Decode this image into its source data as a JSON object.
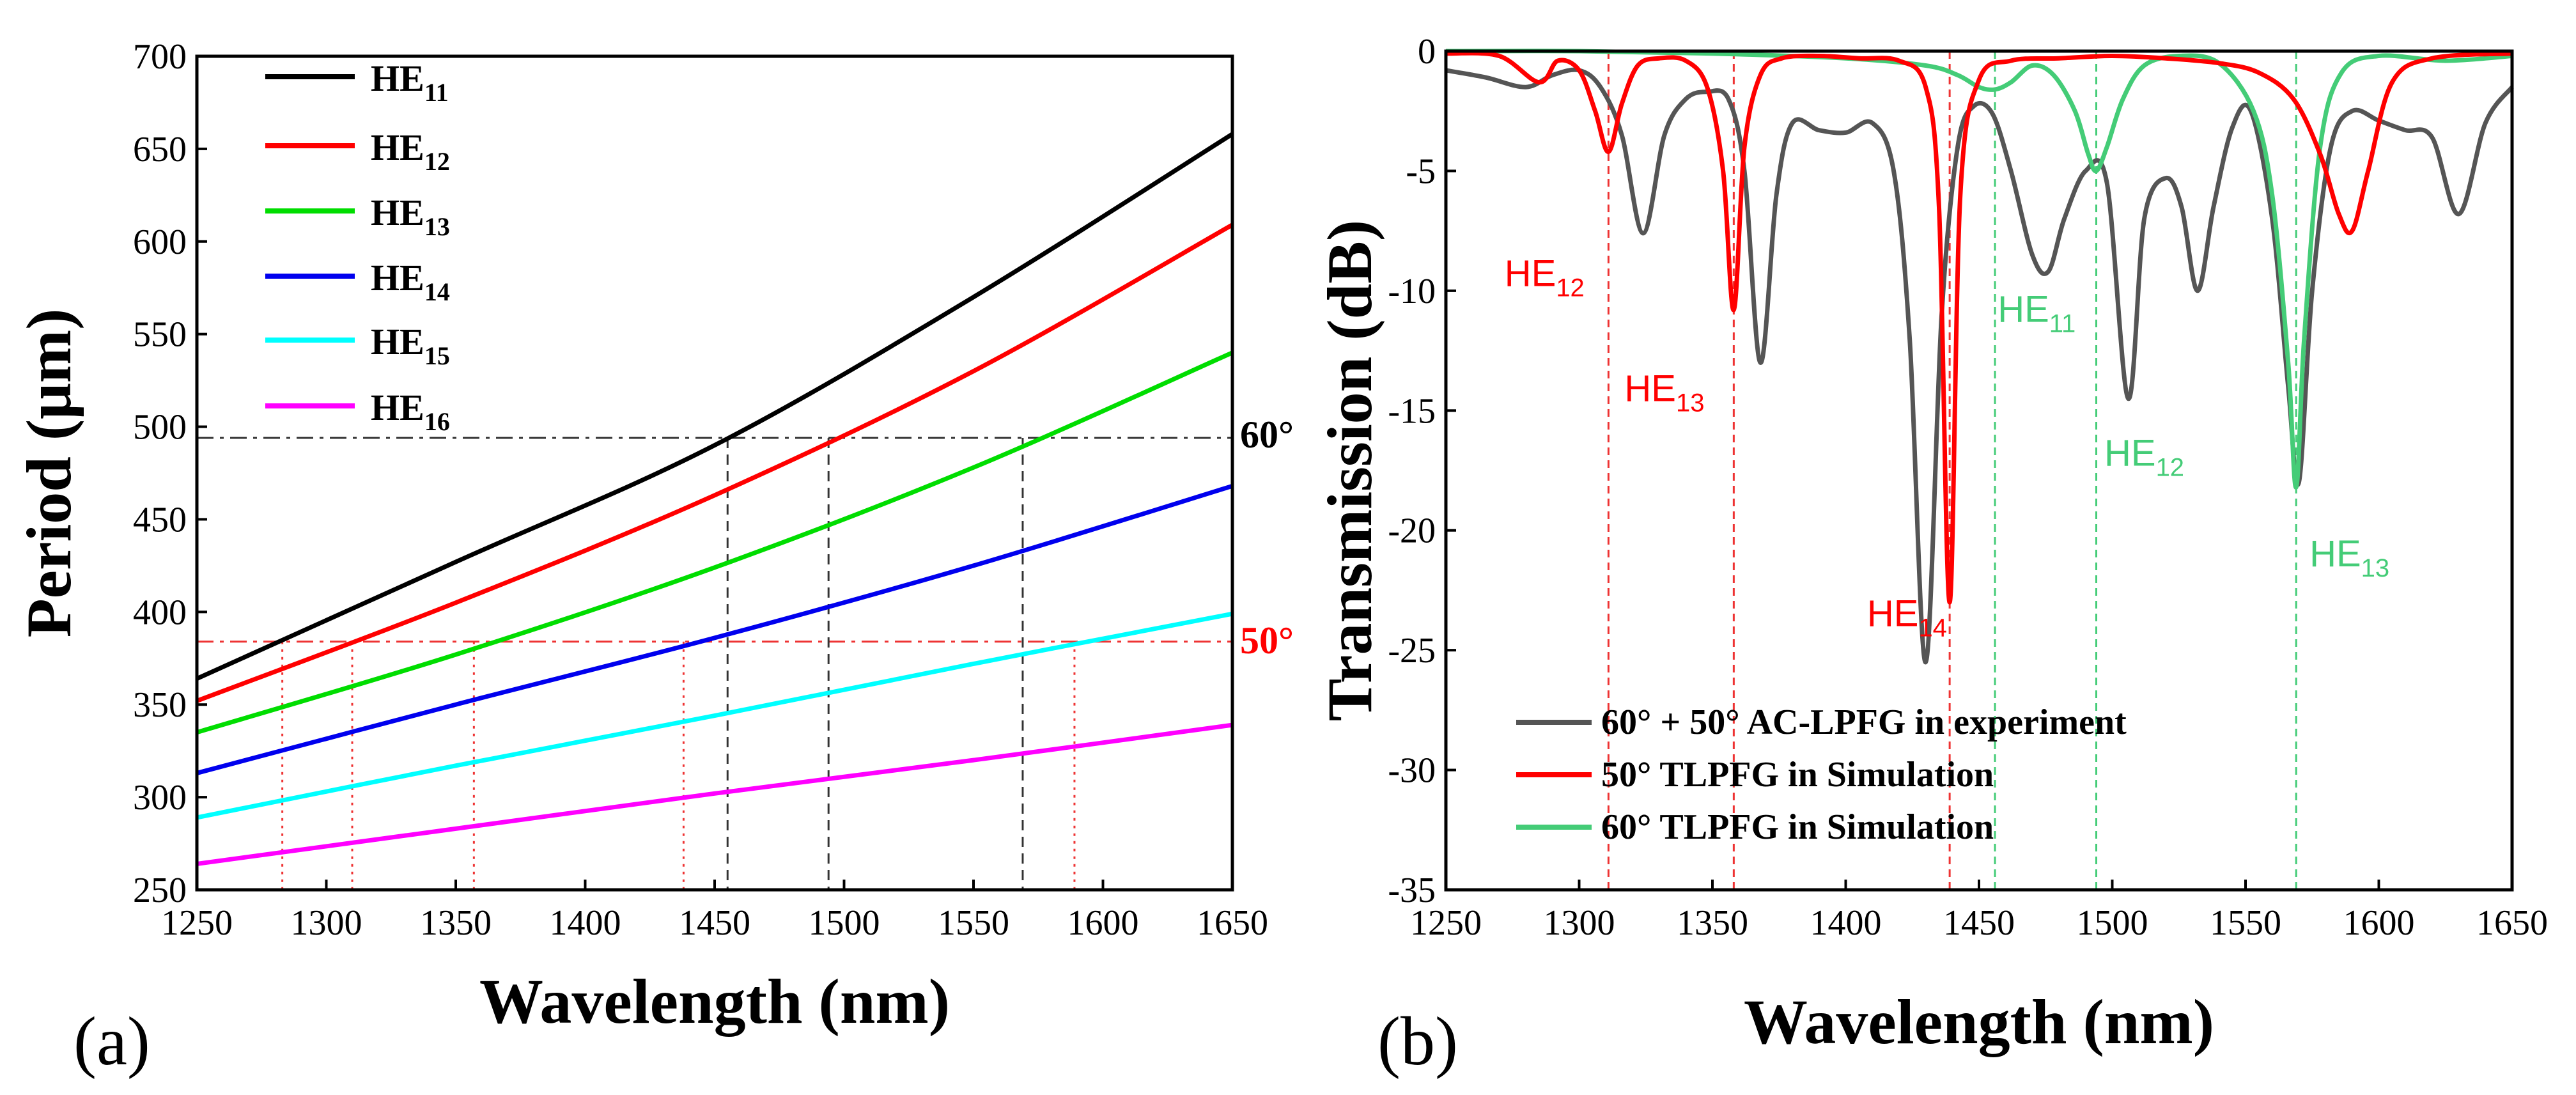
{
  "colors": {
    "he11": "#000000",
    "he12": "#ff0000",
    "he13": "#00dd00",
    "he14": "#0000ee",
    "he15": "#00ffff",
    "he16": "#ff00ff",
    "exp": "#555555",
    "sim50": "#ff0000",
    "sim60": "#44cc77",
    "black_guide": "#333333",
    "red_guide": "#ee3333"
  },
  "panels": {
    "a": {
      "label": "(a)"
    },
    "b": {
      "label": "(b)"
    }
  },
  "chart_data": [
    {
      "type": "line",
      "panel": "a",
      "xlabel": "Wavelength (nm)",
      "ylabel": "Period (μm)",
      "xlim": [
        1250,
        1650
      ],
      "ylim": [
        250,
        700
      ],
      "xticks": [
        "1250",
        "1300",
        "1350",
        "1400",
        "1450",
        "1500",
        "1550",
        "1600",
        "1650"
      ],
      "yticks": [
        "250",
        "300",
        "350",
        "400",
        "450",
        "500",
        "550",
        "600",
        "650",
        "700"
      ],
      "series": [
        {
          "name": "HE",
          "sub": "11",
          "color_key": "he11",
          "x": [
            1250,
            1350,
            1450,
            1550,
            1650
          ],
          "y": [
            364,
            427,
            490,
            570,
            658
          ]
        },
        {
          "name": "HE",
          "sub": "12",
          "color_key": "he12",
          "x": [
            1250,
            1350,
            1450,
            1550,
            1650
          ],
          "y": [
            352,
            405,
            463,
            530,
            609
          ]
        },
        {
          "name": "HE",
          "sub": "13",
          "color_key": "he13",
          "x": [
            1250,
            1350,
            1450,
            1550,
            1650
          ],
          "y": [
            335,
            377,
            424,
            478,
            540
          ]
        },
        {
          "name": "HE",
          "sub": "14",
          "color_key": "he14",
          "x": [
            1250,
            1350,
            1450,
            1550,
            1650
          ],
          "y": [
            313,
            350,
            386,
            425,
            468
          ]
        },
        {
          "name": "HE",
          "sub": "15",
          "color_key": "he15",
          "x": [
            1250,
            1350,
            1450,
            1550,
            1650
          ],
          "y": [
            289,
            317,
            344,
            372,
            399
          ]
        },
        {
          "name": "HE",
          "sub": "16",
          "color_key": "he16",
          "x": [
            1250,
            1350,
            1450,
            1550,
            1650
          ],
          "y": [
            264,
            283,
            302,
            320,
            339
          ]
        }
      ],
      "hlines": [
        {
          "y": 494,
          "label": "60°",
          "color_key": "black_guide"
        },
        {
          "y": 384,
          "label": "50°",
          "color_key": "red_guide"
        }
      ],
      "vlines": [
        {
          "x": 1455,
          "y": 494,
          "color_key": "black_guide",
          "style": "dash"
        },
        {
          "x": 1494,
          "y": 494,
          "color_key": "black_guide",
          "style": "dash"
        },
        {
          "x": 1569,
          "y": 494,
          "color_key": "black_guide",
          "style": "dash"
        },
        {
          "x": 1283,
          "y": 384,
          "color_key": "red_guide",
          "style": "dot"
        },
        {
          "x": 1310,
          "y": 384,
          "color_key": "red_guide",
          "style": "dot"
        },
        {
          "x": 1357,
          "y": 384,
          "color_key": "red_guide",
          "style": "dot"
        },
        {
          "x": 1438,
          "y": 384,
          "color_key": "red_guide",
          "style": "dot"
        },
        {
          "x": 1589,
          "y": 384,
          "color_key": "red_guide",
          "style": "dot"
        }
      ]
    },
    {
      "type": "line",
      "panel": "b",
      "xlabel": "Wavelength (nm)",
      "ylabel": "Transmission (dB)",
      "xlim": [
        1250,
        1650
      ],
      "ylim": [
        -35,
        0
      ],
      "xticks": [
        "1250",
        "1300",
        "1350",
        "1400",
        "1450",
        "1500",
        "1550",
        "1600",
        "1650"
      ],
      "yticks": [
        "-35",
        "-30",
        "-25",
        "-20",
        "-15",
        "-10",
        "-5",
        "0"
      ],
      "series": [
        {
          "name": "60° + 50° AC-LPFG in experiment",
          "color_key": "exp",
          "x": [
            1250,
            1265,
            1280,
            1290,
            1300,
            1308,
            1316,
            1324,
            1332,
            1340,
            1348,
            1356,
            1362,
            1368,
            1374,
            1380,
            1390,
            1400,
            1410,
            1418,
            1424,
            1430,
            1436,
            1442,
            1448,
            1455,
            1462,
            1470,
            1476,
            1482,
            1490,
            1498,
            1506,
            1512,
            1520,
            1526,
            1532,
            1538,
            1545,
            1552,
            1560,
            1566,
            1570,
            1575,
            1582,
            1590,
            1600,
            1610,
            1620,
            1630,
            1640,
            1650
          ],
          "y": [
            -0.8,
            -1.1,
            -1.5,
            -1.0,
            -0.8,
            -1.5,
            -3.5,
            -7.6,
            -3.5,
            -2.0,
            -1.7,
            -2.0,
            -5.0,
            -13.0,
            -6.0,
            -3.0,
            -3.3,
            -3.4,
            -3.0,
            -5.0,
            -12.0,
            -25.5,
            -11.0,
            -4.0,
            -2.3,
            -2.6,
            -5.0,
            -8.5,
            -9.2,
            -7.0,
            -5.0,
            -5.5,
            -14.5,
            -7.0,
            -5.3,
            -6.5,
            -10.0,
            -6.5,
            -3.2,
            -2.5,
            -7.0,
            -14.0,
            -18.0,
            -10.0,
            -4.0,
            -2.5,
            -2.9,
            -3.3,
            -3.6,
            -6.8,
            -3.0,
            -1.5
          ]
        },
        {
          "name": "50° TLPFG in Simulation",
          "color_key": "sim50",
          "x": [
            1250,
            1270,
            1285,
            1292,
            1300,
            1306,
            1311,
            1316,
            1322,
            1330,
            1340,
            1348,
            1354,
            1358,
            1362,
            1368,
            1376,
            1390,
            1405,
            1420,
            1430,
            1435,
            1439,
            1443,
            1450,
            1462,
            1480,
            1500,
            1520,
            1540,
            1555,
            1568,
            1578,
            1585,
            1590,
            1596,
            1605,
            1620,
            1650
          ],
          "y": [
            -0.1,
            -0.2,
            -1.3,
            -0.4,
            -0.8,
            -2.5,
            -4.2,
            -2.2,
            -0.6,
            -0.3,
            -0.4,
            -1.5,
            -5.0,
            -10.8,
            -4.0,
            -1.0,
            -0.3,
            -0.2,
            -0.3,
            -0.4,
            -1.5,
            -6.5,
            -23.0,
            -6.0,
            -1.2,
            -0.4,
            -0.3,
            -0.2,
            -0.3,
            -0.5,
            -0.9,
            -2.0,
            -4.3,
            -6.8,
            -7.5,
            -5.0,
            -1.3,
            -0.3,
            -0.1
          ]
        },
        {
          "name": "60° TLPFG in Simulation",
          "color_key": "sim60",
          "x": [
            1250,
            1300,
            1350,
            1400,
            1430,
            1442,
            1450,
            1456,
            1462,
            1470,
            1478,
            1486,
            1491,
            1494,
            1498,
            1504,
            1512,
            1525,
            1540,
            1553,
            1560,
            1566,
            1569,
            1572,
            1578,
            1586,
            1600,
            1625,
            1650
          ],
          "y": [
            0,
            0,
            -0.1,
            -0.3,
            -0.6,
            -1.0,
            -1.5,
            -1.6,
            -1.3,
            -0.6,
            -1.0,
            -2.5,
            -4.3,
            -5.0,
            -4.0,
            -2.0,
            -0.6,
            -0.2,
            -0.5,
            -2.5,
            -6.0,
            -13.0,
            -18.2,
            -12.0,
            -4.0,
            -0.9,
            -0.2,
            -0.4,
            -0.2
          ]
        }
      ],
      "vlines": [
        {
          "x": 1311,
          "color_key": "red_guide"
        },
        {
          "x": 1358,
          "color_key": "red_guide"
        },
        {
          "x": 1439,
          "color_key": "red_guide"
        },
        {
          "x": 1456,
          "color_key": "sim60"
        },
        {
          "x": 1494,
          "color_key": "sim60"
        },
        {
          "x": 1569,
          "color_key": "sim60"
        }
      ],
      "annotations": [
        {
          "main": "HE",
          "sub": "12",
          "x": 1272,
          "y": -9.8,
          "color_key": "sim50"
        },
        {
          "main": "HE",
          "sub": "13",
          "x": 1317,
          "y": -14.6,
          "color_key": "sim50"
        },
        {
          "main": "HE",
          "sub": "14",
          "x": 1408,
          "y": -24.0,
          "color_key": "sim50"
        },
        {
          "main": "HE",
          "sub": "11",
          "x": 1457,
          "y": -11.3,
          "color_key": "sim60"
        },
        {
          "main": "HE",
          "sub": "12",
          "x": 1497,
          "y": -17.3,
          "color_key": "sim60"
        },
        {
          "main": "HE",
          "sub": "13",
          "x": 1574,
          "y": -21.5,
          "color_key": "sim60"
        }
      ]
    }
  ]
}
